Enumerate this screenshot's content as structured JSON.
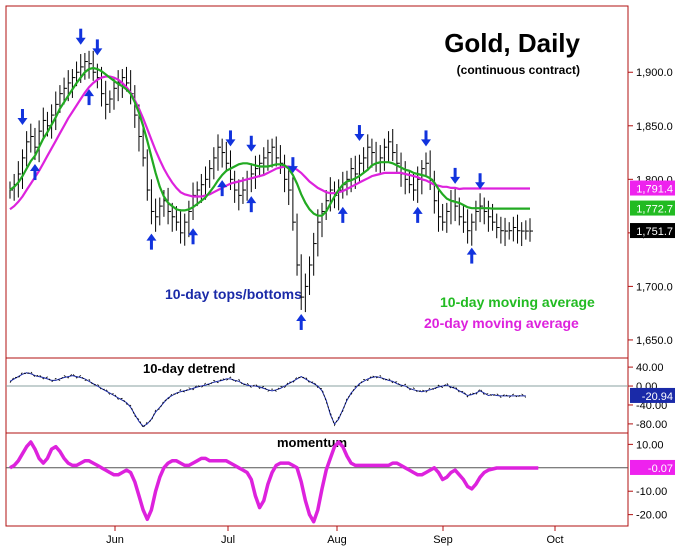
{
  "chart_data": {
    "type": "line",
    "title": "Gold, Daily",
    "subtitle": "(continuous contract)",
    "x_ticks": [
      "Jun",
      "Jul",
      "Aug",
      "Sep",
      "Oct"
    ],
    "annotations": {
      "tops_bottoms": "10-day tops/bottoms",
      "ma10": "10-day moving average",
      "ma20": "20-day moving average"
    },
    "main_panel": {
      "ylim": [
        1635,
        1960
      ],
      "y_ticks": [
        "1,650.0",
        "1,700.0",
        "1,750.0",
        "1,800.0",
        "1,850.0",
        "1,900.0"
      ],
      "y_tick_values": [
        1650,
        1700,
        1750,
        1800,
        1850,
        1900
      ],
      "last_values": {
        "ma20": "1,791.4",
        "ma10": "1,772.7",
        "price": "1,751.7"
      },
      "ma10_color": "#22aa22",
      "ma20_color": "#dd22dd",
      "arrow_color": "#1133dd",
      "bar_days": [
        0,
        1,
        2,
        3,
        4,
        5,
        6,
        7,
        8,
        9,
        10,
        11,
        12,
        13,
        14,
        15,
        16,
        17,
        18,
        19,
        20,
        21,
        22,
        23,
        24,
        25,
        26,
        27,
        28,
        29,
        30,
        31,
        32,
        33,
        34,
        35,
        36,
        37,
        38,
        39,
        40,
        41,
        42,
        43,
        44,
        45,
        46,
        47,
        48,
        49,
        50,
        51,
        52,
        53,
        54,
        55,
        56,
        57,
        58,
        59,
        60,
        61,
        62,
        63,
        64,
        65,
        66,
        67,
        68,
        69,
        70,
        71,
        72,
        73,
        74,
        75,
        76,
        77,
        78,
        79,
        80,
        81,
        82,
        83,
        84,
        85,
        86,
        87,
        88,
        89,
        90,
        91,
        92,
        93,
        94,
        95,
        96,
        97,
        98,
        99,
        100,
        101,
        102,
        103,
        104,
        105,
        106,
        107,
        108,
        109,
        110,
        111,
        112,
        113,
        114,
        115,
        116,
        117,
        118,
        119,
        120,
        121,
        122,
        123,
        124,
        125
      ],
      "close": [
        1790,
        1795,
        1805,
        1820,
        1835,
        1840,
        1830,
        1845,
        1855,
        1850,
        1860,
        1870,
        1880,
        1885,
        1890,
        1895,
        1900,
        1905,
        1910,
        1908,
        1900,
        1895,
        1880,
        1870,
        1875,
        1885,
        1890,
        1895,
        1890,
        1880,
        1860,
        1840,
        1820,
        1790,
        1770,
        1765,
        1775,
        1780,
        1770,
        1765,
        1760,
        1750,
        1760,
        1770,
        1785,
        1790,
        1795,
        1800,
        1810,
        1820,
        1830,
        1825,
        1815,
        1800,
        1790,
        1785,
        1790,
        1800,
        1805,
        1810,
        1815,
        1820,
        1825,
        1830,
        1820,
        1815,
        1800,
        1790,
        1760,
        1720,
        1690,
        1700,
        1720,
        1740,
        1760,
        1770,
        1780,
        1790,
        1785,
        1790,
        1795,
        1800,
        1810,
        1805,
        1815,
        1820,
        1830,
        1825,
        1815,
        1820,
        1830,
        1835,
        1825,
        1815,
        1805,
        1800,
        1795,
        1790,
        1800,
        1810,
        1815,
        1800,
        1780,
        1765,
        1760,
        1770,
        1780,
        1775,
        1765,
        1760,
        1752,
        1760,
        1770,
        1775,
        1770,
        1765,
        1760,
        1755,
        1752,
        1751.7,
        1752,
        1755,
        1752,
        1751.7,
        1751.7,
        1751.7
      ],
      "ma10": [
        1790,
        1793,
        1797,
        1803,
        1810,
        1817,
        1822,
        1830,
        1838,
        1844,
        1851,
        1858,
        1866,
        1872,
        1878,
        1884,
        1890,
        1895,
        1900,
        1903,
        1904,
        1903,
        1901,
        1898,
        1895,
        1892,
        1889,
        1887,
        1884,
        1880,
        1872,
        1862,
        1850,
        1836,
        1821,
        1806,
        1793,
        1784,
        1778,
        1775,
        1772,
        1771,
        1771,
        1772,
        1774,
        1777,
        1780,
        1783,
        1788,
        1793,
        1799,
        1804,
        1808,
        1810,
        1812,
        1814,
        1815,
        1815,
        1814,
        1813,
        1812,
        1812,
        1812,
        1813,
        1814,
        1814,
        1813,
        1810,
        1804,
        1796,
        1786,
        1778,
        1772,
        1768,
        1766,
        1766,
        1770,
        1777,
        1784,
        1790,
        1795,
        1798,
        1799,
        1801,
        1803,
        1806,
        1809,
        1813,
        1815,
        1816,
        1816,
        1816,
        1815,
        1813,
        1811,
        1809,
        1808,
        1806,
        1805,
        1804,
        1803,
        1801,
        1797,
        1791,
        1786,
        1782,
        1780,
        1779,
        1778,
        1776,
        1774,
        1773,
        1773,
        1773,
        1773,
        1773,
        1772.7,
        1772.7,
        1772.7,
        1772.7,
        1772.7,
        1772.7,
        1772.7,
        1772.7,
        1772.7,
        1772.7
      ],
      "ma20": [
        1772,
        1775,
        1779,
        1784,
        1790,
        1796,
        1802,
        1808,
        1815,
        1822,
        1829,
        1836,
        1843,
        1850,
        1857,
        1863,
        1869,
        1875,
        1881,
        1886,
        1890,
        1893,
        1895,
        1896,
        1896,
        1895,
        1893,
        1890,
        1886,
        1881,
        1874,
        1866,
        1857,
        1847,
        1837,
        1827,
        1818,
        1810,
        1803,
        1797,
        1792,
        1788,
        1786,
        1785,
        1784,
        1784,
        1784,
        1785,
        1786,
        1788,
        1790,
        1792,
        1794,
        1796,
        1797,
        1798,
        1799,
        1800,
        1801,
        1802,
        1803,
        1804,
        1806,
        1808,
        1810,
        1811,
        1812,
        1812,
        1811,
        1809,
        1806,
        1802,
        1798,
        1795,
        1792,
        1790,
        1788,
        1787,
        1787,
        1788,
        1789,
        1791,
        1793,
        1795,
        1797,
        1799,
        1801,
        1803,
        1804,
        1805,
        1806,
        1806,
        1806,
        1806,
        1806,
        1805,
        1804,
        1803,
        1802,
        1800,
        1799,
        1797,
        1795,
        1794,
        1793,
        1793,
        1792,
        1792,
        1791,
        1791.4,
        1791.4,
        1791.4,
        1791.4,
        1791.4,
        1791.4,
        1791.4,
        1791.4,
        1791.4,
        1791.4,
        1791.4,
        1791.4,
        1791.4,
        1791.4,
        1791.4,
        1791.4,
        1791.4
      ]
    },
    "detrend_panel": {
      "label": "10-day detrend",
      "ylim": [
        -95,
        55
      ],
      "y_ticks": [
        "40.00",
        "0.00",
        "-40.00",
        "-80.00"
      ],
      "y_tick_values": [
        40,
        0,
        -40,
        -80
      ],
      "last_value": "-20.94",
      "values": [
        10,
        15,
        20,
        25,
        28,
        26,
        22,
        20,
        18,
        15,
        12,
        12,
        15,
        18,
        20,
        22,
        20,
        18,
        15,
        10,
        5,
        0,
        -5,
        -10,
        -15,
        -20,
        -25,
        -30,
        -35,
        -45,
        -60,
        -75,
        -85,
        -80,
        -70,
        -55,
        -45,
        -35,
        -25,
        -20,
        -15,
        -12,
        -10,
        -8,
        -5,
        -2,
        0,
        2,
        5,
        8,
        10,
        12,
        15,
        15,
        12,
        10,
        5,
        2,
        0,
        0,
        -2,
        -5,
        -8,
        -10,
        -8,
        -5,
        0,
        5,
        10,
        15,
        20,
        15,
        10,
        5,
        0,
        -10,
        -30,
        -60,
        -80,
        -70,
        -50,
        -30,
        -15,
        -5,
        5,
        10,
        15,
        18,
        20,
        18,
        15,
        12,
        10,
        5,
        2,
        0,
        -5,
        -8,
        -10,
        -12,
        -10,
        -8,
        -5,
        -2,
        0,
        2,
        -2,
        -5,
        -10,
        -15,
        -20,
        -18,
        -15,
        -10,
        -15,
        -20,
        -18,
        -20,
        -20.94,
        -20.94,
        -20.94,
        -20.94,
        -20.94,
        -20.94,
        -20.94
      ]
    },
    "momentum_panel": {
      "label": "momentum",
      "ylim": [
        -24,
        14
      ],
      "y_ticks": [
        "10.00",
        "-10.00",
        "-20.00"
      ],
      "y_tick_values": [
        10,
        -10,
        -20
      ],
      "last_value": "-0.07",
      "values": [
        0,
        1,
        3,
        6,
        9,
        11,
        8,
        4,
        2,
        4,
        8,
        9,
        7,
        4,
        2,
        1,
        1,
        2,
        3,
        3,
        2,
        1,
        0,
        -1,
        -2,
        -3,
        -3,
        -2,
        -1,
        -2,
        -6,
        -12,
        -18,
        -22,
        -18,
        -10,
        -4,
        0,
        2,
        3,
        3,
        2,
        1,
        1,
        2,
        3,
        4,
        4,
        3,
        3,
        3,
        3,
        3,
        2,
        1,
        0,
        -1,
        -2,
        -5,
        -12,
        -17,
        -14,
        -7,
        -2,
        1,
        2,
        2,
        2,
        1,
        0,
        -6,
        -14,
        -20,
        -23,
        -18,
        -9,
        -1,
        4,
        9,
        11,
        9,
        5,
        2,
        1,
        1,
        1,
        1,
        1,
        1,
        1,
        1,
        1,
        2,
        2,
        1,
        0,
        -1,
        -2,
        -3,
        -3,
        -2,
        -1,
        0,
        -2,
        -5,
        -4,
        -2,
        -1,
        -3,
        -5,
        -8,
        -9,
        -7,
        -4,
        -2,
        -1,
        -0.5,
        -0.07,
        -0.07,
        -0.07,
        -0.07,
        -0.07,
        -0.07,
        -0.07,
        -0.07,
        -0.07,
        -0.07,
        -0.07
      ]
    },
    "arrows_down_days": [
      3,
      17,
      21,
      53,
      58,
      68,
      84,
      100,
      107,
      113
    ],
    "arrows_up_days": [
      6,
      19,
      34,
      44,
      51,
      58,
      70,
      80,
      98,
      111
    ]
  }
}
